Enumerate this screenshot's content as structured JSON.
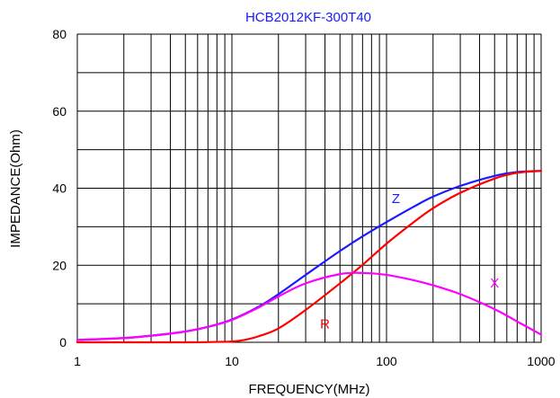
{
  "chart_data": {
    "type": "line",
    "title": "HCB2012KF-300T40",
    "xlabel": "FREQUENCY(MHz)",
    "ylabel": "IMPEDANCE(Ohm)",
    "x_scale": "log",
    "xlim": [
      1,
      1000
    ],
    "ylim": [
      0,
      80
    ],
    "x_ticks": [
      1,
      10,
      100,
      1000
    ],
    "x_tick_labels": [
      "1",
      "10",
      "100",
      "1000"
    ],
    "y_ticks": [
      0,
      20,
      40,
      60,
      80
    ],
    "y_tick_labels": [
      "0",
      "20",
      "40",
      "60",
      "80"
    ],
    "grid": true,
    "title_color": "#1a1aff",
    "series": [
      {
        "name": "Z",
        "color": "#1a1aff",
        "x": [
          1,
          2,
          3,
          5,
          7,
          10,
          15,
          20,
          30,
          50,
          70,
          100,
          150,
          200,
          300,
          500,
          700,
          1000
        ],
        "y": [
          0.6,
          1.1,
          1.7,
          2.8,
          4.0,
          5.9,
          9.3,
          12.5,
          17.5,
          23.7,
          27.5,
          31.2,
          35.2,
          37.8,
          40.6,
          43.2,
          44.2,
          44.5
        ]
      },
      {
        "name": "R",
        "color": "#ff0000",
        "x": [
          1,
          5,
          8,
          10,
          12,
          15,
          20,
          30,
          50,
          70,
          100,
          150,
          200,
          300,
          500,
          700,
          1000
        ],
        "y": [
          0.0,
          0.0,
          0.1,
          0.2,
          0.6,
          1.6,
          3.6,
          8.4,
          15.3,
          20.1,
          25.6,
          31.2,
          34.8,
          38.8,
          42.5,
          44.0,
          44.5
        ]
      },
      {
        "name": "X",
        "color": "#ff00ff",
        "x": [
          1,
          2,
          3,
          5,
          7,
          10,
          15,
          20,
          30,
          50,
          70,
          100,
          150,
          200,
          300,
          500,
          700,
          1000
        ],
        "y": [
          0.6,
          1.1,
          1.7,
          2.8,
          4.0,
          5.8,
          9.1,
          11.9,
          15.3,
          17.7,
          18.0,
          17.5,
          16.1,
          14.8,
          12.5,
          8.6,
          5.4,
          2.0
        ]
      }
    ],
    "series_labels": [
      {
        "text": "Z",
        "x": 115,
        "y": 36.2
      },
      {
        "text": "R",
        "x": 40,
        "y": 3.6
      },
      {
        "text": "X",
        "x": 500,
        "y": 14.2
      }
    ]
  }
}
